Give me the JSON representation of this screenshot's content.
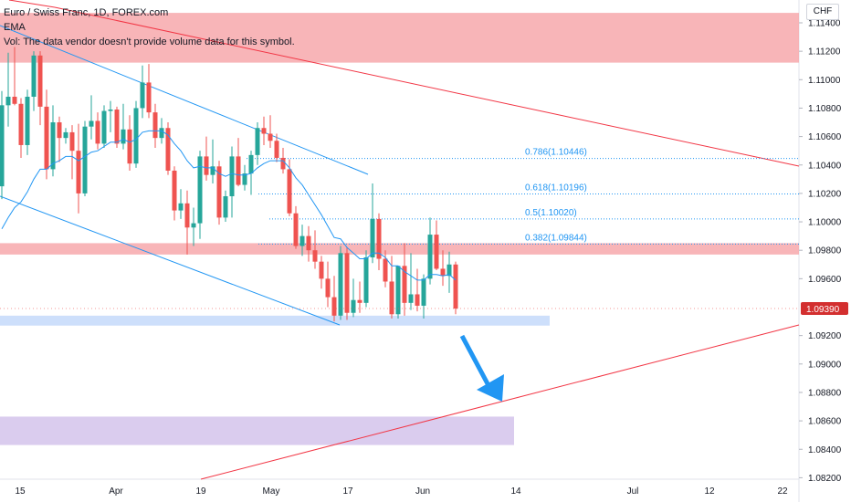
{
  "legend": {
    "symbol": "Euro / Swiss Franc, 1D, FOREX.com",
    "ema": "EMA",
    "vol": "Vol: The data vendor doesn't provide volume data for this symbol."
  },
  "currency": "CHF",
  "last_price": "1.09390",
  "colors": {
    "up": "#26a69a",
    "down": "#ef5350",
    "wick_up": "#26a69a",
    "wick_down": "#ef5350",
    "ema": "#2196f3",
    "channel": "#2196f3",
    "trend": "#f23645",
    "zone_red": "#f7a8ab",
    "zone_blue": "#c8dcfb",
    "zone_purple": "#d6c6ec",
    "fib": "#2196f3",
    "arrow": "#2196f3"
  },
  "chart_data": {
    "type": "candlestick",
    "yaxis": {
      "ticks": [
        "1.11400",
        "1.11200",
        "1.11000",
        "1.10800",
        "1.10600",
        "1.10400",
        "1.10200",
        "1.10000",
        "1.09800",
        "1.09600",
        "1.09200",
        "1.09000",
        "1.08800",
        "1.08600",
        "1.08400",
        "1.08200"
      ],
      "ylim": [
        1.0815,
        1.1158
      ]
    },
    "xaxis": {
      "ticks": [
        "15",
        "Apr",
        "19",
        "May",
        "17",
        "Jun",
        "14",
        "Jul",
        "12",
        "22"
      ]
    },
    "fib_levels": [
      {
        "label": "0.786(1.10446)",
        "value": 1.10446
      },
      {
        "label": "0.618(1.10196)",
        "value": 1.10196
      },
      {
        "label": "0.5(1.10020)",
        "value": 1.1002
      },
      {
        "label": "0.382(1.09844)",
        "value": 1.09844
      }
    ],
    "zones": [
      {
        "color": "red",
        "top": 1.1147,
        "bottom": 1.1112
      },
      {
        "color": "red",
        "top": 1.0985,
        "bottom": 1.0977
      },
      {
        "color": "blue",
        "top": 1.0934,
        "bottom": 1.0927
      },
      {
        "color": "purple",
        "top": 1.0863,
        "bottom": 1.0843
      }
    ],
    "candles": [
      [
        1.1025,
        1.1092,
        1.1016,
        1.1082
      ],
      [
        1.1082,
        1.1119,
        1.1067,
        1.1088
      ],
      [
        1.1088,
        1.1123,
        1.1082,
        1.1083
      ],
      [
        1.1083,
        1.1087,
        1.1045,
        1.1054
      ],
      [
        1.1054,
        1.1093,
        1.1047,
        1.1088
      ],
      [
        1.1088,
        1.112,
        1.1078,
        1.1117
      ],
      [
        1.1117,
        1.112,
        1.1068,
        1.1081
      ],
      [
        1.1081,
        1.1093,
        1.103,
        1.1037
      ],
      [
        1.1037,
        1.1082,
        1.1032,
        1.107
      ],
      [
        1.107,
        1.1074,
        1.1042,
        1.1059
      ],
      [
        1.1059,
        1.1066,
        1.1055,
        1.1063
      ],
      [
        1.1063,
        1.1068,
        1.103,
        1.105
      ],
      [
        1.105,
        1.1069,
        1.1006,
        1.102
      ],
      [
        1.102,
        1.1071,
        1.1018,
        1.1067
      ],
      [
        1.1067,
        1.1089,
        1.1058,
        1.1071
      ],
      [
        1.1071,
        1.1077,
        1.1051,
        1.1055
      ],
      [
        1.1055,
        1.1082,
        1.1052,
        1.1078
      ],
      [
        1.1078,
        1.1085,
        1.1063,
        1.1079
      ],
      [
        1.1079,
        1.1081,
        1.1052,
        1.1055
      ],
      [
        1.1055,
        1.1083,
        1.1051,
        1.1065
      ],
      [
        1.1065,
        1.1075,
        1.1036,
        1.1041
      ],
      [
        1.1041,
        1.1085,
        1.1038,
        1.108
      ],
      [
        1.108,
        1.111,
        1.1073,
        1.1098
      ],
      [
        1.1098,
        1.1111,
        1.1073,
        1.1077
      ],
      [
        1.1077,
        1.1083,
        1.1052,
        1.1059
      ],
      [
        1.1059,
        1.1073,
        1.1055,
        1.1066
      ],
      [
        1.1066,
        1.107,
        1.1033,
        1.1036
      ],
      [
        1.1036,
        1.1039,
        1.1001,
        1.1008
      ],
      [
        1.1008,
        1.1023,
        1.1002,
        1.1013
      ],
      [
        1.1013,
        1.1022,
        1.0977,
        1.0996
      ],
      [
        1.0996,
        1.101,
        1.0983,
        1.0999
      ],
      [
        1.0999,
        1.105,
        1.0988,
        1.1046
      ],
      [
        1.1046,
        1.106,
        1.1029,
        1.1033
      ],
      [
        1.1033,
        1.1058,
        1.1027,
        1.1039
      ],
      [
        1.1039,
        1.1043,
        1.0998,
        1.1003
      ],
      [
        1.1003,
        1.1022,
        1.1,
        1.1018
      ],
      [
        1.1018,
        1.1053,
        1.1003,
        1.1046
      ],
      [
        1.1046,
        1.1059,
        1.1025,
        1.1026
      ],
      [
        1.1026,
        1.104,
        1.1022,
        1.1034
      ],
      [
        1.1034,
        1.105,
        1.1019,
        1.1047
      ],
      [
        1.1047,
        1.107,
        1.104,
        1.1066
      ],
      [
        1.1066,
        1.1074,
        1.1054,
        1.1062
      ],
      [
        1.1062,
        1.1075,
        1.1052,
        1.1057
      ],
      [
        1.1057,
        1.1062,
        1.1042,
        1.1045
      ],
      [
        1.1045,
        1.1052,
        1.1034,
        1.1037
      ],
      [
        1.1037,
        1.1044,
        1.1004,
        1.1006
      ],
      [
        1.1006,
        1.1011,
        1.0981,
        1.0983
      ],
      [
        1.0983,
        1.0998,
        1.0976,
        1.099
      ],
      [
        1.099,
        1.0997,
        1.0972,
        1.098
      ],
      [
        1.098,
        1.0994,
        1.0967,
        1.0972
      ],
      [
        1.0972,
        1.0976,
        1.0953,
        1.096
      ],
      [
        1.096,
        1.0972,
        1.094,
        1.0947
      ],
      [
        1.0947,
        1.0962,
        1.093,
        1.0934
      ],
      [
        1.0934,
        1.0983,
        1.0931,
        1.0978
      ],
      [
        1.0978,
        1.0982,
        1.0931,
        1.0936
      ],
      [
        1.0936,
        1.096,
        1.0933,
        1.0945
      ],
      [
        1.0945,
        1.0958,
        1.0936,
        1.0943
      ],
      [
        1.0943,
        1.098,
        1.094,
        1.0975
      ],
      [
        1.0975,
        1.1027,
        1.0971,
        1.1002
      ],
      [
        1.1002,
        1.1006,
        1.0966,
        1.0974
      ],
      [
        1.0974,
        1.098,
        1.0954,
        1.0958
      ],
      [
        1.0958,
        1.0976,
        1.0932,
        1.0935
      ],
      [
        1.0935,
        1.0966,
        1.0932,
        1.0969
      ],
      [
        1.0969,
        1.0985,
        1.0934,
        1.0943
      ],
      [
        1.0943,
        1.0978,
        1.0938,
        1.0949
      ],
      [
        1.0949,
        1.0967,
        1.0937,
        1.0941
      ],
      [
        1.0941,
        1.0963,
        1.0932,
        1.096
      ],
      [
        1.096,
        1.1003,
        1.0956,
        1.0991
      ],
      [
        1.0991,
        1.1001,
        1.0966,
        1.0967
      ],
      [
        1.0967,
        1.098,
        1.0955,
        1.0962
      ],
      [
        1.0962,
        1.0979,
        1.095,
        1.097
      ],
      [
        1.097,
        1.0972,
        1.0935,
        1.0939
      ]
    ],
    "ema": [
      1.0995,
      1.1003,
      1.101,
      1.1014,
      1.1021,
      1.103,
      1.1037,
      1.1037,
      1.1041,
      1.1043,
      1.1046,
      1.1046,
      1.1043,
      1.1046,
      1.1049,
      1.105,
      1.1053,
      1.1056,
      1.1056,
      1.1058,
      1.1056,
      1.1058,
      1.1063,
      1.1064,
      1.1064,
      1.1064,
      1.1061,
      1.1055,
      1.105,
      1.1043,
      1.1038,
      1.1039,
      1.1038,
      1.1038,
      1.1034,
      1.1032,
      1.1034,
      1.1033,
      1.1033,
      1.1034,
      1.1038,
      1.1041,
      1.1043,
      1.1043,
      1.1043,
      1.1038,
      1.1031,
      1.1026,
      1.1019,
      1.1012,
      1.1005,
      1.0997,
      1.0989,
      1.0988,
      1.0982,
      1.0978,
      1.0974,
      1.0974,
      1.0978,
      1.0978,
      1.0975,
      1.0969,
      1.0969,
      1.0965,
      1.0962,
      1.0959,
      1.0959,
      1.0963,
      1.0963,
      1.0962,
      1.0963,
      1.0959
    ]
  }
}
